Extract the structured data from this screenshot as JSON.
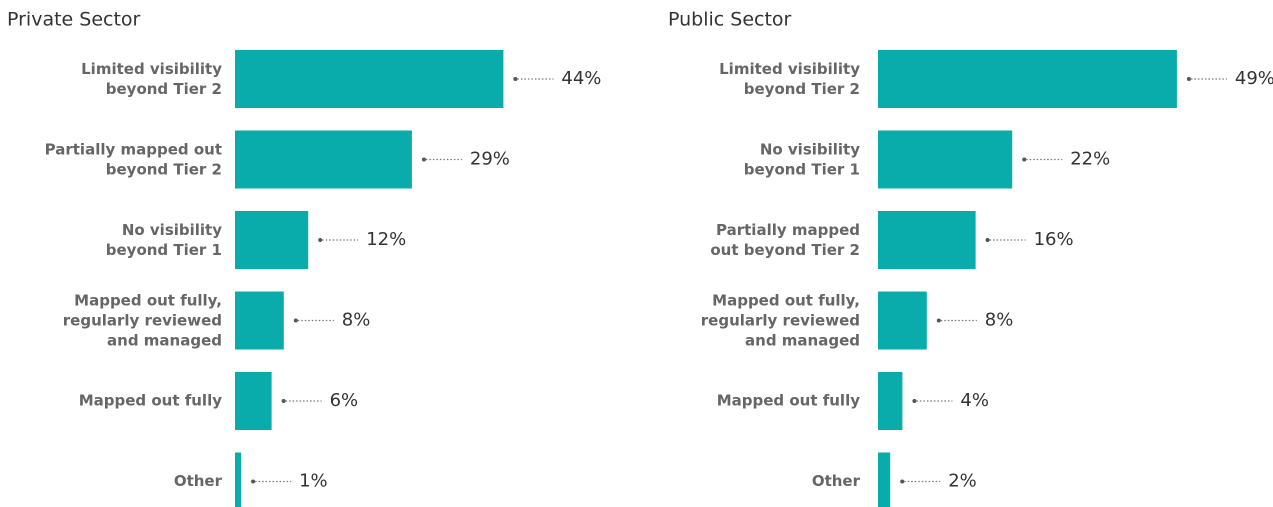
{
  "chart_data": [
    {
      "type": "hbar",
      "title": "Private Sector",
      "color": "#0aabab",
      "categories": [
        "Limited visibility\nbeyond Tier 2",
        "Partially mapped out\nbeyond Tier 2",
        "No visibility\nbeyond Tier 1",
        "Mapped out fully,\nregularly reviewed\nand managed",
        "Mapped out fully",
        "Other"
      ],
      "values": [
        44,
        29,
        12,
        8,
        6,
        1
      ],
      "value_labels": [
        "44%",
        "29%",
        "12%",
        "8%",
        "6%",
        "1%"
      ]
    },
    {
      "type": "hbar",
      "title": "Public Sector",
      "color": "#0aabab",
      "categories": [
        "Limited visibility\nbeyond Tier 2",
        "No visibility\nbeyond Tier 1",
        "Partially mapped\nout beyond Tier 2",
        "Mapped out fully,\nregularly reviewed\nand managed",
        "Mapped out fully",
        "Other"
      ],
      "values": [
        49,
        22,
        16,
        8,
        4,
        2
      ],
      "value_labels": [
        "49%",
        "22%",
        "16%",
        "8%",
        "4%",
        "2%"
      ]
    }
  ]
}
